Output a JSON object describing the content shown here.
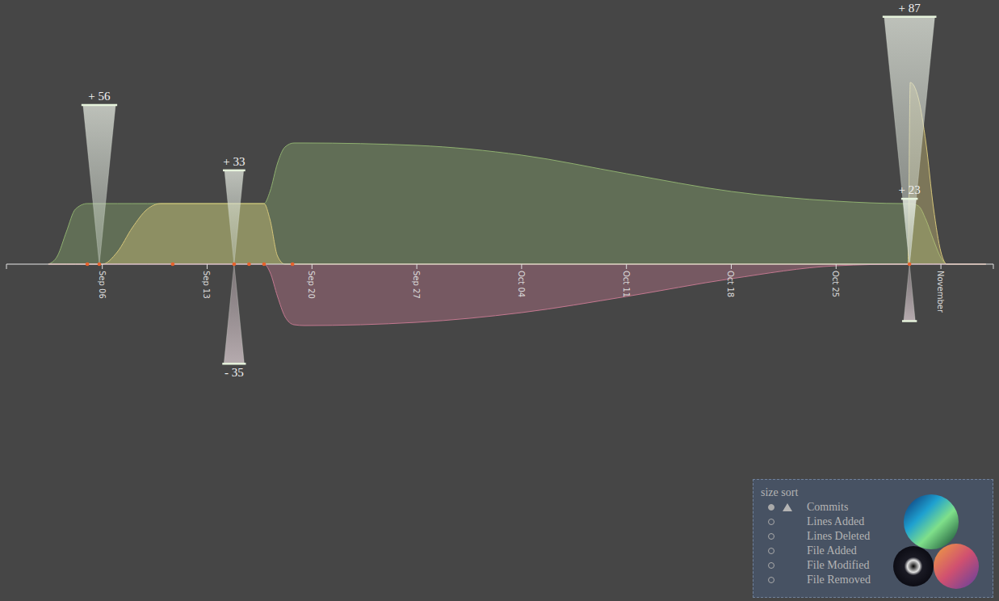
{
  "chart_data": {
    "type": "area",
    "x": [
      2.4,
      3,
      3.6,
      4.2,
      5,
      6,
      7,
      8,
      9,
      9.9,
      16.8,
      17.2,
      17.7,
      18.2,
      18.8,
      19.5,
      27,
      34,
      41,
      48,
      55,
      59.5,
      59.8,
      59.95,
      60.5,
      61,
      61.5,
      62,
      62.4,
      65
    ],
    "xlim": [
      -0.4,
      65.5
    ],
    "xticks": [
      {
        "value": 6,
        "label": "Sep 06"
      },
      {
        "value": 13,
        "label": "Sep 13"
      },
      {
        "value": 20,
        "label": "Sep 20"
      },
      {
        "value": 27,
        "label": "Sep 27"
      },
      {
        "value": 34,
        "label": "Oct 04"
      },
      {
        "value": 41,
        "label": "Oct 11"
      },
      {
        "value": 48,
        "label": "Oct 18"
      },
      {
        "value": 55,
        "label": "Oct 25"
      },
      {
        "value": 62,
        "label": "November"
      }
    ],
    "ylim": [
      -280,
      320
    ],
    "y2lim": [
      -79.5,
      90.9
    ],
    "tick_labels": "x",
    "grid": false,
    "series": [
      {
        "color": "#8fb070",
        "values": [
          0,
          10,
          40,
          68,
          75,
          75,
          75,
          75,
          75,
          75,
          75,
          90,
          125,
          145,
          150,
          150,
          147,
          135,
          112,
          90,
          78,
          75,
          75,
          75,
          72,
          55,
          30,
          8,
          0,
          0
        ]
      },
      {
        "color": "#d6c67a",
        "values": [
          0,
          0,
          0,
          0,
          0,
          0,
          15,
          45,
          68,
          75,
          75,
          55,
          10,
          0,
          0,
          0,
          0,
          0,
          0,
          0,
          0,
          0,
          0,
          225,
          205,
          150,
          70,
          15,
          0,
          0
        ]
      },
      {
        "color": "#c47890",
        "values": [
          0,
          0,
          0,
          0,
          0,
          0,
          0,
          0,
          0,
          0,
          0,
          -10,
          -40,
          -65,
          -75,
          -76,
          -72,
          -60,
          -40,
          -18,
          -2,
          0,
          0,
          0,
          0,
          0,
          0,
          0,
          0,
          0
        ]
      },
      {
        "type": "scatter",
        "marker": "circle",
        "color": "#e8622c",
        "x": [
          5.0,
          5.8,
          10.7,
          14.8,
          15.8,
          16.8,
          18.7,
          59.9
        ],
        "values": [
          0,
          0,
          0,
          0,
          0,
          0,
          0,
          0
        ]
      },
      {
        "type": "funnel",
        "axis": "y2",
        "x": [
          5.8,
          14.8,
          14.8,
          59.9,
          59.9,
          59.9
        ],
        "values": [
          56,
          33,
          -35,
          87,
          -20,
          23
        ],
        "value_labels": [
          "+ 56",
          "+ 33",
          "- 35",
          "+ 87",
          null,
          "+ 23"
        ]
      }
    ]
  },
  "panel": {
    "title": "size sort",
    "options": [
      "Commits",
      "Lines Added",
      "Lines Deleted",
      "File Added",
      "File Modified",
      "File Removed"
    ],
    "selected": "Commits"
  }
}
